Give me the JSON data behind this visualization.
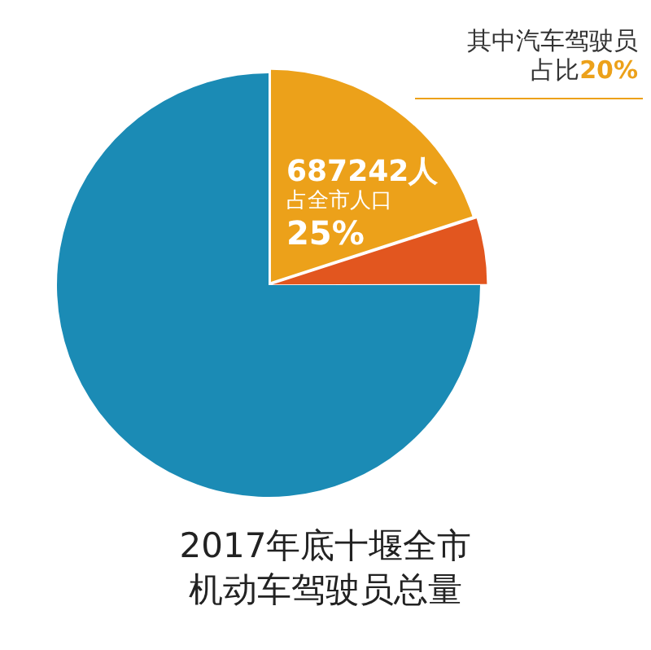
{
  "chart_data": {
    "type": "pie",
    "title": "2017年底十堰全市机动车驾驶员总量",
    "categories": [
      null,
      null,
      null
    ],
    "values": [
      20,
      5,
      75
    ],
    "colors": [
      "#eca11a",
      "#e2561f",
      "#1b8bb5"
    ],
    "annotations": [
      "687242人",
      "占全市人口",
      "25%",
      "其中汽车驾驶员",
      "占比20%"
    ],
    "legend": false
  }
}
